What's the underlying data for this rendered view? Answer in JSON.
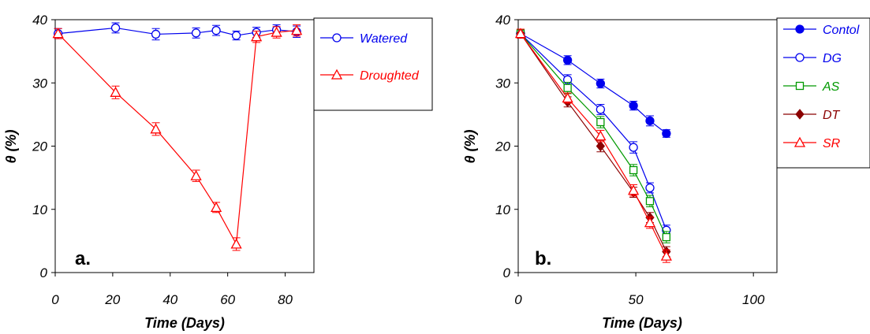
{
  "chart_data": [
    {
      "type": "line",
      "panel_label": "a.",
      "xlabel": "Time (Days)",
      "ylabel": "θ (%)",
      "xlim": [
        0,
        90
      ],
      "ylim": [
        0,
        40
      ],
      "xticks": [
        0,
        20,
        40,
        60,
        80
      ],
      "yticks": [
        0,
        10,
        20,
        30,
        40
      ],
      "grid": false,
      "legend_position": "right",
      "series": [
        {
          "name": "Watered",
          "color": "#0000ee",
          "marker": "open-circle",
          "x": [
            1,
            21,
            35,
            49,
            56,
            63,
            70,
            77,
            84
          ],
          "y": [
            37.8,
            38.7,
            37.7,
            37.9,
            38.3,
            37.5,
            38.0,
            38.4,
            38.1
          ],
          "err": [
            0.8,
            0.8,
            0.9,
            0.8,
            0.8,
            0.7,
            0.8,
            0.8,
            0.9
          ]
        },
        {
          "name": "Droughted",
          "color": "#ff0000",
          "marker": "open-triangle",
          "x": [
            1,
            21,
            35,
            49,
            56,
            63,
            70,
            77,
            84
          ],
          "y": [
            37.8,
            28.5,
            22.7,
            15.3,
            10.3,
            4.5,
            37.3,
            38.0,
            38.3
          ],
          "err": [
            0.8,
            1.0,
            1.0,
            0.9,
            0.8,
            1.0,
            0.9,
            0.9,
            0.9
          ]
        }
      ]
    },
    {
      "type": "line",
      "panel_label": "b.",
      "xlabel": "Time (Days)",
      "ylabel": "θ (%)",
      "xlim": [
        0,
        110
      ],
      "ylim": [
        0,
        40
      ],
      "xticks": [
        0,
        50,
        100
      ],
      "yticks": [
        0,
        10,
        20,
        30,
        40
      ],
      "grid": false,
      "legend_position": "right",
      "series": [
        {
          "name": "Contol",
          "color": "#0000ee",
          "marker": "filled-circle",
          "x": [
            1,
            21,
            35,
            49,
            56,
            63
          ],
          "y": [
            37.8,
            33.6,
            29.9,
            26.4,
            24.0,
            22.0
          ],
          "err": [
            0.7,
            0.7,
            0.7,
            0.7,
            0.8,
            0.6
          ]
        },
        {
          "name": "DG",
          "color": "#0000ee",
          "marker": "open-circle",
          "x": [
            1,
            21,
            35,
            49,
            56,
            63
          ],
          "y": [
            37.8,
            30.5,
            25.8,
            19.8,
            13.4,
            6.7
          ],
          "err": [
            0.7,
            0.8,
            0.8,
            0.9,
            0.8,
            0.8
          ]
        },
        {
          "name": "AS",
          "color": "#009900",
          "marker": "open-square",
          "x": [
            1,
            21,
            35,
            49,
            56,
            63
          ],
          "y": [
            37.8,
            29.2,
            23.8,
            16.2,
            11.3,
            5.6
          ],
          "err": [
            0.7,
            0.9,
            0.9,
            0.9,
            0.9,
            0.9
          ]
        },
        {
          "name": "DT",
          "color": "#8b0000",
          "marker": "filled-diamond",
          "x": [
            1,
            21,
            35,
            49,
            56,
            63
          ],
          "y": [
            37.8,
            27.0,
            20.0,
            12.7,
            8.7,
            3.3
          ],
          "err": [
            0.7,
            0.8,
            0.9,
            0.8,
            0.8,
            0.8
          ]
        },
        {
          "name": "SR",
          "color": "#ff0000",
          "marker": "open-triangle",
          "x": [
            1,
            21,
            35,
            49,
            56,
            63
          ],
          "y": [
            37.8,
            27.6,
            21.6,
            13.0,
            7.9,
            2.6
          ],
          "err": [
            0.7,
            0.8,
            0.9,
            0.9,
            0.9,
            1.0
          ]
        }
      ]
    }
  ]
}
